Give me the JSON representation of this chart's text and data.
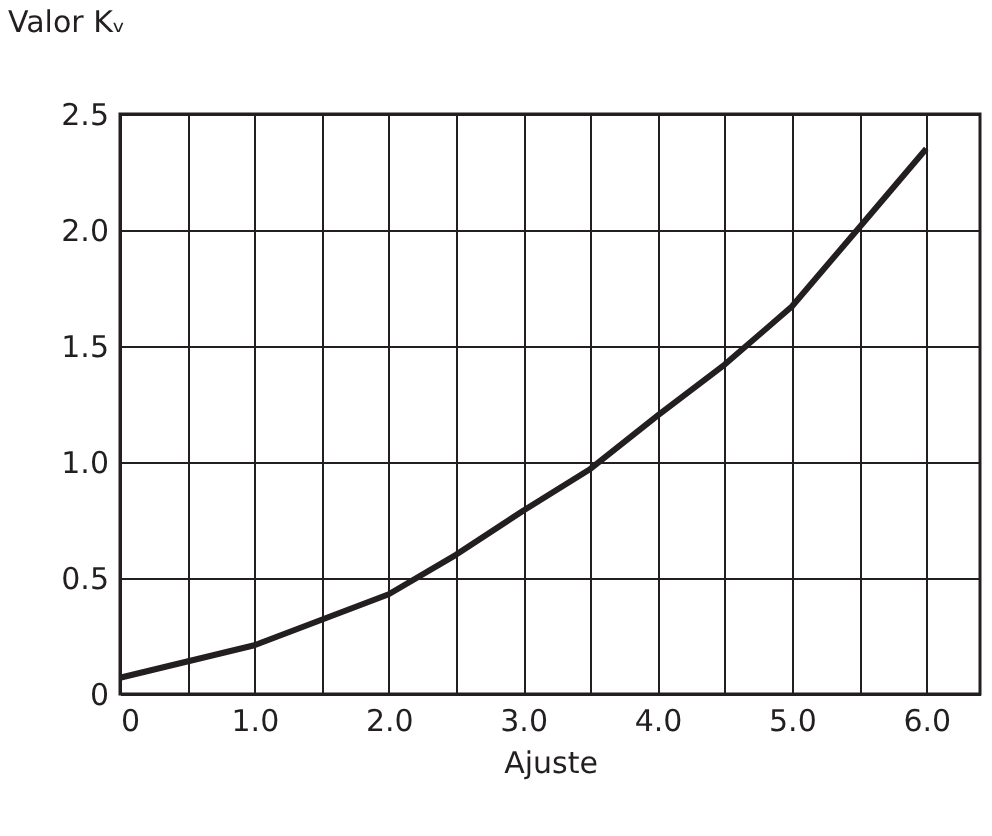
{
  "chart_data": {
    "type": "line",
    "ylabel": "Valor Kᵥ",
    "xlabel": "Ajuste",
    "x": [
      0,
      1.0,
      2.0,
      2.5,
      3.0,
      3.5,
      4.0,
      4.5,
      5.0,
      5.5,
      6.0
    ],
    "series": [
      {
        "color": "#231f20",
        "values": [
          0.07,
          0.21,
          0.43,
          0.6,
          0.79,
          0.97,
          1.2,
          1.42,
          1.67,
          2.01,
          2.35
        ]
      }
    ],
    "xlim": [
      0,
      6.4
    ],
    "xticks": [
      {
        "value": 0,
        "label": "0"
      },
      {
        "value": 0.5,
        "label": null
      },
      {
        "value": 1.0,
        "label": "1.0"
      },
      {
        "value": 1.5,
        "label": null
      },
      {
        "value": 2.0,
        "label": "2.0"
      },
      {
        "value": 2.5,
        "label": null
      },
      {
        "value": 3.0,
        "label": "3.0"
      },
      {
        "value": 3.5,
        "label": null
      },
      {
        "value": 4.0,
        "label": "4.0"
      },
      {
        "value": 4.5,
        "label": null
      },
      {
        "value": 5.0,
        "label": "5.0"
      },
      {
        "value": 5.5,
        "label": null
      },
      {
        "value": 6.0,
        "label": "6.0"
      }
    ],
    "ylim": [
      0,
      2.5
    ],
    "yticks": [
      {
        "value": 0,
        "label": "0"
      },
      {
        "value": 0.5,
        "label": "0.5"
      },
      {
        "value": 1.0,
        "label": "1.0"
      },
      {
        "value": 1.5,
        "label": "1.5"
      },
      {
        "value": 2.0,
        "label": "2.0"
      },
      {
        "value": 2.5,
        "label": "2.5"
      }
    ],
    "grid": true,
    "marker": "none",
    "line_style": "solid"
  }
}
